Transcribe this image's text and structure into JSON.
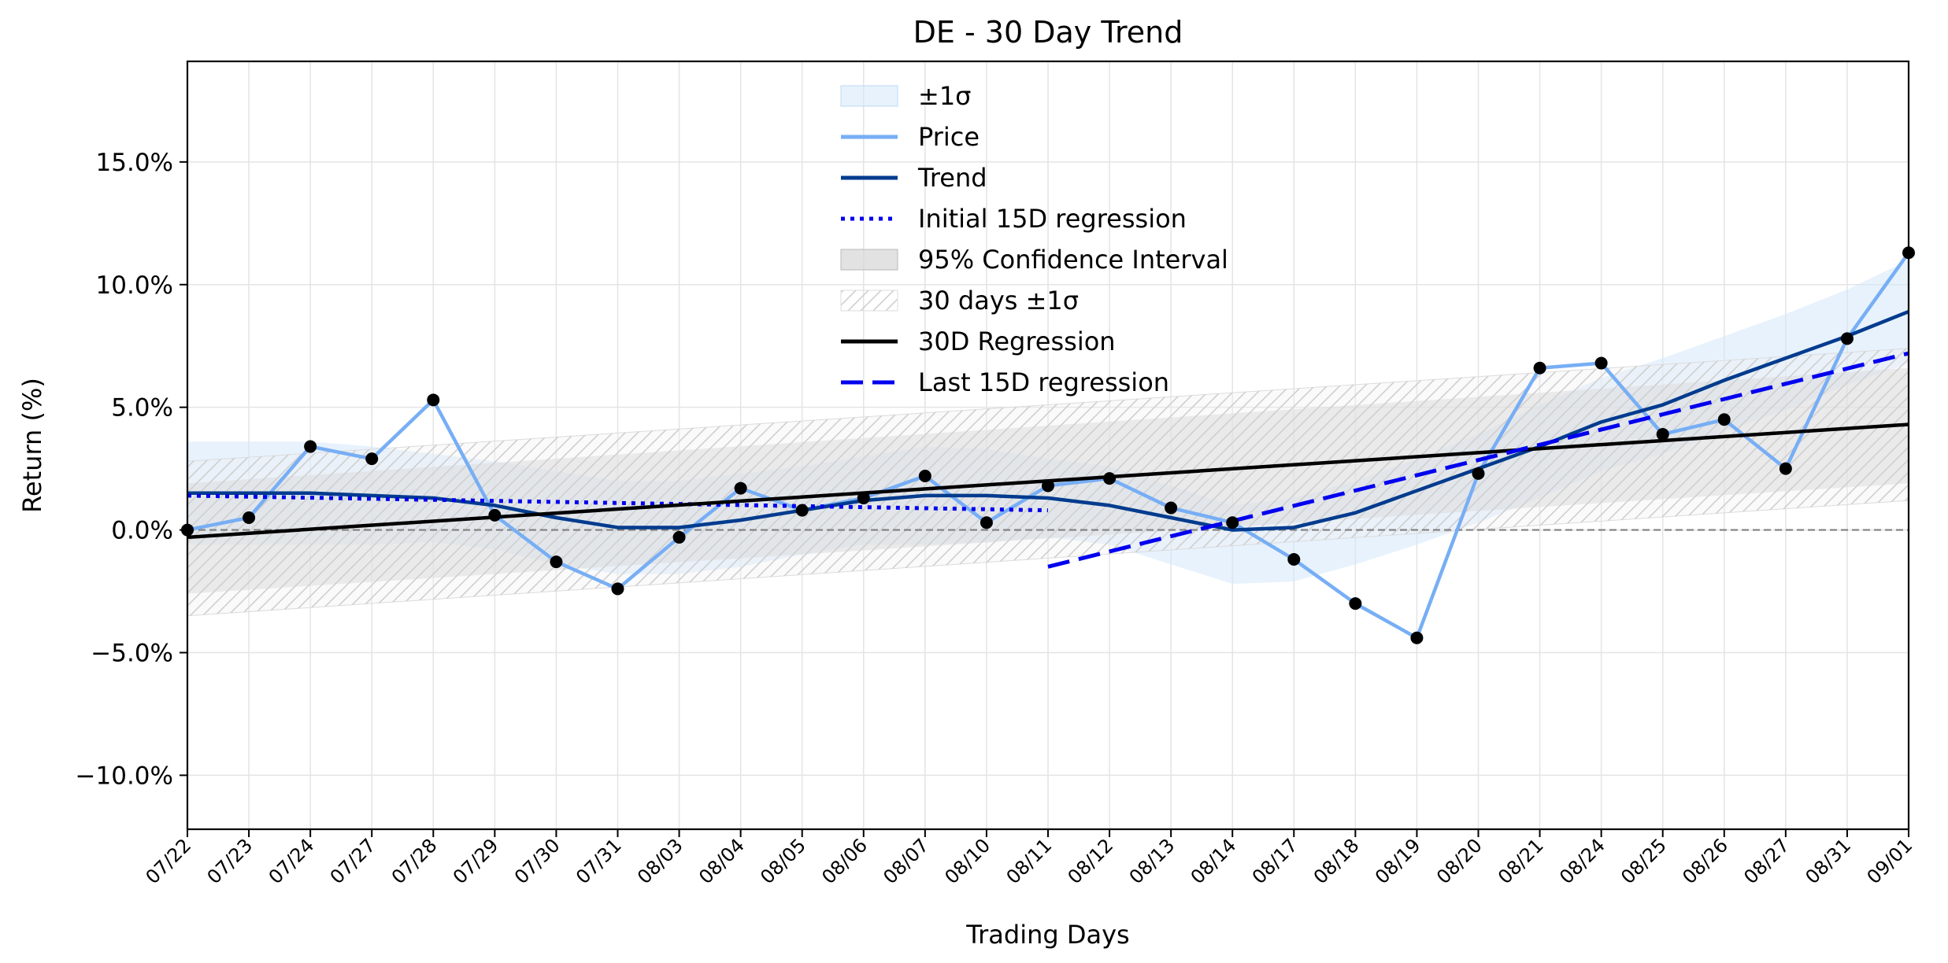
{
  "chart_data": {
    "type": "line",
    "title": "DE - 30 Day Trend",
    "xlabel": "Trading Days",
    "ylabel": "Return (%)",
    "ylim": [
      -12.2,
      19.1
    ],
    "yticks": [
      -10,
      -5,
      0,
      5,
      10,
      15
    ],
    "ytick_labels": [
      "−10.0%",
      "−5.0%",
      "0.0%",
      "5.0%",
      "10.0%",
      "15.0%"
    ],
    "grid": true,
    "legend_position": "upper-center",
    "categories": [
      "07/22",
      "07/23",
      "07/24",
      "07/27",
      "07/28",
      "07/29",
      "07/30",
      "07/31",
      "08/03",
      "08/04",
      "08/05",
      "08/06",
      "08/07",
      "08/10",
      "08/11",
      "08/12",
      "08/13",
      "08/14",
      "08/17",
      "08/18",
      "08/19",
      "08/20",
      "08/21",
      "08/24",
      "08/25",
      "08/26",
      "08/27",
      "08/31",
      "09/01"
    ],
    "zero_line": 0,
    "series": [
      {
        "name": "Price",
        "style": "line-markers",
        "color": "#77aef5",
        "values": [
          0.0,
          0.5,
          3.4,
          2.9,
          5.3,
          0.6,
          -1.3,
          -2.4,
          -0.3,
          1.7,
          0.8,
          1.3,
          2.2,
          0.3,
          1.8,
          2.1,
          0.9,
          0.3,
          -1.2,
          -3.0,
          -4.4,
          2.3,
          6.6,
          6.8,
          3.9,
          4.5,
          2.5,
          7.8,
          11.3
        ]
      },
      {
        "name": "Trend",
        "style": "line",
        "color": "#003b8e",
        "values": [
          1.5,
          1.5,
          1.5,
          1.4,
          1.3,
          1.0,
          0.5,
          0.1,
          0.1,
          0.4,
          0.8,
          1.2,
          1.4,
          1.4,
          1.3,
          1.0,
          0.5,
          0.0,
          0.1,
          0.7,
          1.6,
          2.5,
          3.4,
          4.4,
          5.1,
          6.1,
          7.0,
          7.9,
          8.9
        ]
      },
      {
        "name": "Initial 15D regression",
        "style": "dotted",
        "color": "#0000ee",
        "x_start": 0,
        "x_end": 14,
        "y_start": 1.4,
        "y_end": 0.8
      },
      {
        "name": "30D Regression",
        "style": "line",
        "color": "#000000",
        "x_start": 0,
        "x_end": 28,
        "y_start": -0.3,
        "y_end": 4.3
      },
      {
        "name": "Last 15D regression",
        "style": "dashed",
        "color": "#0000ee",
        "x_start": 14,
        "x_end": 28,
        "y_start": -1.5,
        "y_end": 7.2
      },
      {
        "name": "±1σ",
        "style": "band",
        "color": "#cfe6fb",
        "upper": [
          3.6,
          3.6,
          3.6,
          3.4,
          3.1,
          2.8,
          2.4,
          2.0,
          2.0,
          2.3,
          2.6,
          3.0,
          3.4,
          3.3,
          2.9,
          2.6,
          1.8,
          1.0,
          1.3,
          2.0,
          2.9,
          3.9,
          5.1,
          6.2,
          7.0,
          7.9,
          8.8,
          9.8,
          11.0
        ],
        "lower": [
          -0.6,
          -0.6,
          -0.6,
          -0.6,
          -0.5,
          -0.8,
          -1.4,
          -1.8,
          -1.8,
          -1.5,
          -1.0,
          -0.6,
          -0.6,
          -0.5,
          -0.3,
          -0.6,
          -1.4,
          -2.2,
          -2.1,
          -1.4,
          -0.6,
          0.3,
          1.3,
          2.4,
          3.1,
          4.0,
          4.9,
          5.9,
          6.8
        ]
      },
      {
        "name": "95% Confidence Interval",
        "style": "band",
        "color": "#e6e6e6",
        "lower_start": -2.6,
        "lower_end": 1.9,
        "upper_start": 1.9,
        "upper_end": 6.6
      },
      {
        "name": "30 days ±1σ",
        "style": "hatched-band",
        "color": "#d8d8d8",
        "lower_start": -3.5,
        "lower_end": 1.2,
        "upper_start": 2.8,
        "upper_end": 7.4
      }
    ],
    "legend": [
      "±1σ",
      "Price",
      "Trend",
      "Initial 15D regression",
      "95% Confidence Interval",
      "30 days ±1σ",
      "30D Regression",
      "Last 15D regression"
    ]
  }
}
